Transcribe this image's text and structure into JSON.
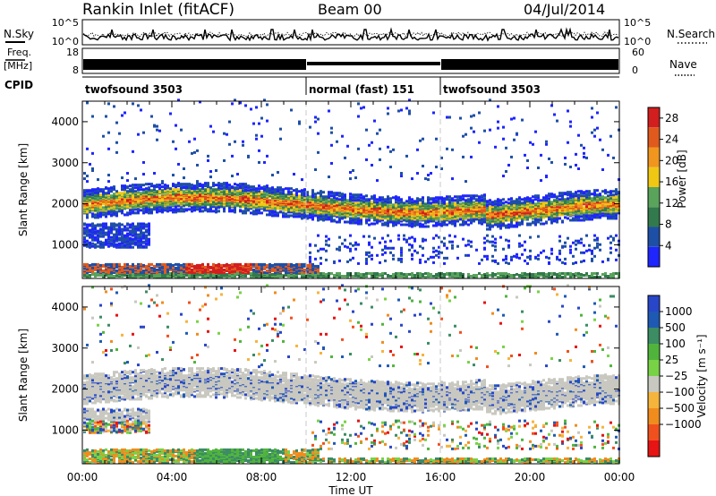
{
  "header": {
    "title": "Rankin Inlet (fitACF)",
    "beam": "Beam 00",
    "date": "04/Jul/2014"
  },
  "params": {
    "nsky_label": "N.Sky",
    "nsky_ticks": [
      "10^5",
      "10^0"
    ],
    "nsearch_label": "N.Search",
    "nsearch_ticks": [
      "10^5",
      "10^0"
    ],
    "freq_label_1": "Freq.",
    "freq_label_2": "[MHz]",
    "freq_ticks": [
      "18",
      "8"
    ],
    "nave_label": "Nave",
    "nave_ticks": [
      "60",
      "0"
    ],
    "cpid_label": "CPID"
  },
  "cpid_segments": [
    {
      "label": "twofsound 3503",
      "start_hour": 0,
      "end_hour": 10
    },
    {
      "label": "normal (fast) 151",
      "start_hour": 10,
      "end_hour": 16
    },
    {
      "label": "twofsound 3503",
      "start_hour": 16,
      "end_hour": 24
    }
  ],
  "colors": {
    "power": [
      "#1e25ff",
      "#1e4fa6",
      "#327a4d",
      "#59a35b",
      "#f0c814",
      "#f0961e",
      "#e05a1e",
      "#d21e1e"
    ],
    "velocity": [
      "#e61414",
      "#f0501e",
      "#f08c1e",
      "#f5b43c",
      "#c8c8c0",
      "#78d246",
      "#50b43c",
      "#3c8c64",
      "#1e5ab4",
      "#2846c8"
    ],
    "frame": "#000000",
    "dashed_line": "#c8c8c8"
  },
  "chart_data": [
    {
      "type": "heatmap",
      "title": "",
      "xlabel": "Time UT",
      "ylabel": "Slant Range [km]",
      "xlim_hours": [
        0,
        24
      ],
      "ylim_km": [
        180,
        4500
      ],
      "x_ticks": [
        "00:00",
        "04:00",
        "08:00",
        "12:00",
        "16:00",
        "20:00",
        "00:00"
      ],
      "y_ticks": [
        1000,
        2000,
        3000,
        4000
      ],
      "colorbar": {
        "label": "Power [dB]",
        "ticks": [
          4,
          8,
          12,
          16,
          20,
          24,
          28
        ],
        "range": [
          0,
          30
        ]
      },
      "mode_change_hours": [
        10,
        16
      ],
      "bands": [
        {
          "description": "main scatter band",
          "range_km": [
            1500,
            2300
          ]
        },
        {
          "description": "low range intense echoes",
          "range_km": [
            200,
            600
          ],
          "hours": [
            0,
            10
          ]
        },
        {
          "description": "ground echo strip",
          "range_km": [
            200,
            300
          ],
          "hours": [
            0,
            24
          ]
        }
      ]
    },
    {
      "type": "heatmap",
      "title": "",
      "xlabel": "Time UT",
      "ylabel": "Slant Range [km]",
      "xlim_hours": [
        0,
        24
      ],
      "ylim_km": [
        180,
        4500
      ],
      "x_ticks": [
        "00:00",
        "04:00",
        "08:00",
        "12:00",
        "16:00",
        "20:00",
        "00:00"
      ],
      "y_ticks": [
        1000,
        2000,
        3000,
        4000
      ],
      "colorbar": {
        "label": "Velocity [m s⁻¹]",
        "ticks": [
          "1000",
          "500",
          "100",
          "25",
          "−25",
          "−100",
          "−500",
          "−1000"
        ]
      },
      "mode_change_hours": [
        10,
        16
      ],
      "bands": [
        {
          "description": "ground scatter band (grey)",
          "range_km": [
            1300,
            2300
          ]
        },
        {
          "description": "low range mixed velocities",
          "range_km": [
            200,
            1100
          ]
        }
      ]
    }
  ],
  "xaxis": {
    "ticks": [
      "00:00",
      "04:00",
      "08:00",
      "12:00",
      "16:00",
      "20:00",
      "00:00"
    ],
    "label": "Time UT"
  }
}
